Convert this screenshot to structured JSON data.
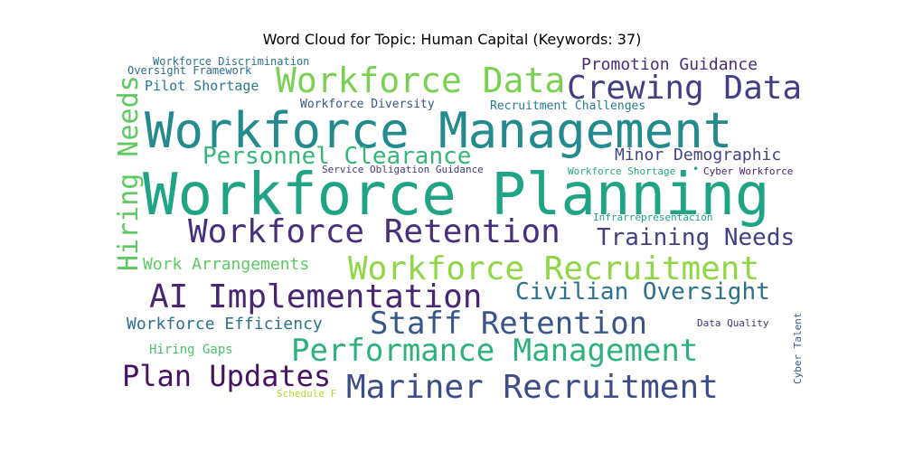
{
  "chart_data": {
    "type": "wordcloud",
    "title": "Word Cloud for Topic: Human Capital (Keywords: 37)",
    "words": [
      {
        "text": "Workforce Planning",
        "size": 64,
        "color": "#20a486"
      },
      {
        "text": "Workforce Management",
        "size": 54,
        "color": "#238a8d"
      },
      {
        "text": "Workforce Data",
        "size": 38,
        "color": "#7ad151"
      },
      {
        "text": "Crewing Data",
        "size": 36,
        "color": "#433e85"
      },
      {
        "text": "Workforce Recruitment",
        "size": 36,
        "color": "#8fd744"
      },
      {
        "text": "Workforce Retention",
        "size": 36,
        "color": "#472f7d"
      },
      {
        "text": "AI Implementation",
        "size": 36,
        "color": "#482575"
      },
      {
        "text": "Mariner Recruitment",
        "size": 36,
        "color": "#3e4c8a"
      },
      {
        "text": "Staff Retention",
        "size": 34,
        "color": "#39568c"
      },
      {
        "text": "Performance Management",
        "size": 34,
        "color": "#2db27d"
      },
      {
        "text": "Plan Updates",
        "size": 32,
        "color": "#471164"
      },
      {
        "text": "Hiring Needs",
        "size": 30,
        "color": "#5ec962"
      },
      {
        "text": "Personnel Clearance",
        "size": 26,
        "color": "#35b779"
      },
      {
        "text": "Training Needs",
        "size": 26,
        "color": "#433e85"
      },
      {
        "text": "Civilian Oversight",
        "size": 26,
        "color": "#2c728e"
      },
      {
        "text": "Promotion Guidance",
        "size": 18,
        "color": "#472d7b"
      },
      {
        "text": "Minor Demographic",
        "size": 18,
        "color": "#414487"
      },
      {
        "text": "Work Arrangements",
        "size": 18,
        "color": "#5ec962"
      },
      {
        "text": "Workforce Efficiency",
        "size": 18,
        "color": "#2c728e"
      },
      {
        "text": "Pilot Shortage",
        "size": 15,
        "color": "#2a788e"
      },
      {
        "text": "Hiring Gaps",
        "size": 14,
        "color": "#4ac16d"
      },
      {
        "text": "Workforce Diversity",
        "size": 13,
        "color": "#3b528b"
      },
      {
        "text": "Recruitment Challenges",
        "size": 13,
        "color": "#287c8e"
      },
      {
        "text": "Workforce Discrimination",
        "size": 12,
        "color": "#2c728e"
      },
      {
        "text": "Oversight Framework",
        "size": 12,
        "color": "#31688e"
      },
      {
        "text": "Service Obligation Guidance",
        "size": 11,
        "color": "#443983"
      },
      {
        "text": "Workforce Shortage",
        "size": 11,
        "color": "#22a884"
      },
      {
        "text": "Cyber Workforce",
        "size": 11,
        "color": "#482173"
      },
      {
        "text": "Infrarrepresentación",
        "size": 11,
        "color": "#1fa088"
      },
      {
        "text": "Data Quality",
        "size": 11,
        "color": "#46327e"
      },
      {
        "text": "Cyber Talent",
        "size": 11,
        "color": "#38598c"
      },
      {
        "text": "Schedule F",
        "size": 11,
        "color": "#b5de2b"
      },
      {
        "text": "•",
        "size": 12,
        "color": "#1fa088"
      }
    ]
  }
}
